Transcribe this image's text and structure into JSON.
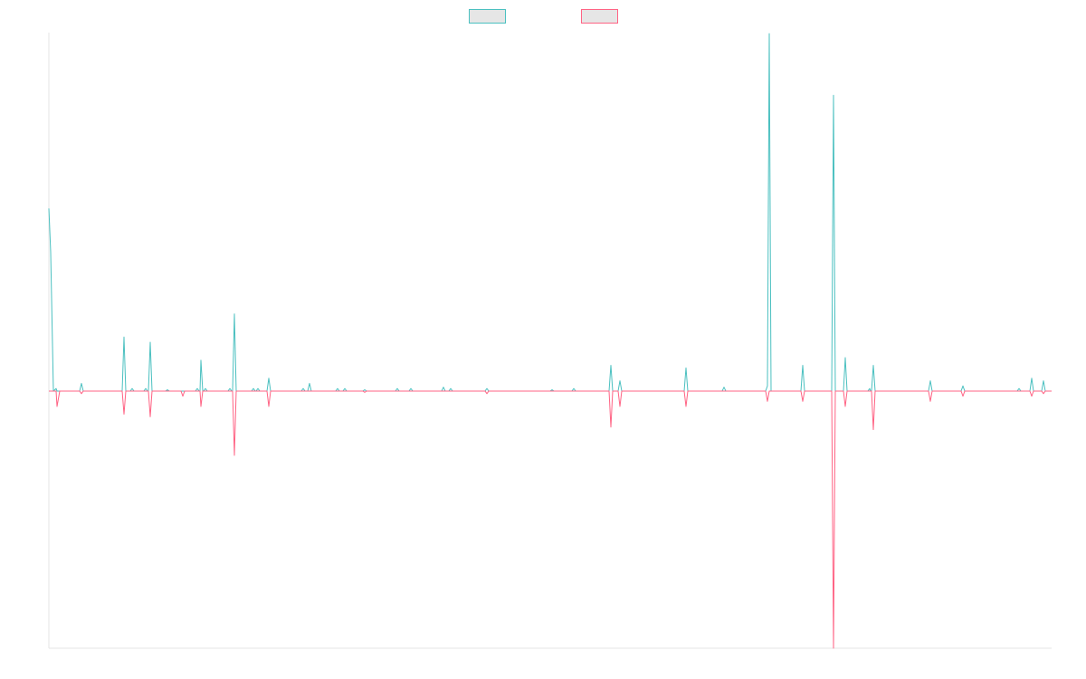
{
  "chart_data": {
    "type": "line",
    "x": [
      0,
      2,
      5,
      8,
      9,
      12,
      34,
      36,
      38,
      81,
      83,
      85,
      90,
      92,
      94,
      105,
      107,
      109,
      110,
      112,
      114,
      129,
      131,
      133,
      146,
      148,
      150,
      162,
      164,
      166,
      167,
      168,
      170,
      171,
      173,
      175,
      198,
      200,
      202,
      203,
      205,
      207,
      224,
      226,
      228,
      229,
      231,
      233,
      241,
      243,
      245,
      279,
      281,
      283,
      286,
      288,
      290,
      317,
      319,
      321,
      325,
      327,
      329,
      347,
      349,
      351,
      383,
      385,
      387,
      398,
      400,
      402,
      434,
      436,
      438,
      442,
      444,
      446,
      482,
      484,
      486,
      554,
      556,
      558,
      578,
      580,
      582,
      619,
      621,
      623,
      629,
      631,
      633,
      702,
      704,
      706,
      744,
      746,
      748,
      792,
      794,
      796,
      798,
      831,
      833,
      835,
      865,
      867,
      869,
      878,
      880,
      882,
      905,
      907,
      908,
      909,
      911,
      913,
      972,
      974,
      976,
      1008,
      1010,
      1012,
      1070,
      1072,
      1074,
      1084,
      1086,
      1088,
      1097,
      1099,
      1101,
      1108
    ],
    "series": [
      {
        "color": "#4bc0c0",
        "values": [
          71,
          54,
          0,
          1,
          0,
          0,
          0,
          3,
          0,
          0,
          21,
          0,
          0,
          1,
          0,
          0,
          1,
          0,
          0,
          19,
          0,
          0,
          0.5,
          0,
          0,
          0,
          0,
          0,
          1,
          0,
          0,
          12,
          0,
          0,
          1,
          0,
          0,
          1,
          0,
          0,
          30,
          0,
          0,
          1,
          0,
          0,
          1,
          0,
          0,
          5,
          0,
          0,
          1,
          0,
          0,
          3,
          0,
          0,
          1,
          0,
          0,
          1,
          0,
          0,
          0.5,
          0,
          0,
          1,
          0,
          0,
          1,
          0,
          0,
          1.5,
          0,
          0,
          1,
          0,
          0,
          1,
          0,
          0,
          0.5,
          0,
          0,
          1,
          0,
          0,
          10,
          0,
          0,
          4,
          0,
          0,
          9,
          0,
          0,
          1.5,
          0,
          0,
          2,
          139,
          0,
          0,
          10,
          0,
          0,
          115,
          0,
          0,
          13,
          0,
          0,
          1,
          0,
          0,
          10,
          0,
          0,
          4,
          0,
          0,
          2,
          0,
          0,
          1,
          0,
          0,
          5,
          0,
          0,
          4,
          0,
          0
        ]
      },
      {
        "color": "#ff6384",
        "values": [
          0,
          0,
          0,
          0,
          -6,
          0,
          0,
          -1,
          0,
          0,
          -9,
          0,
          0,
          0,
          0,
          0,
          0,
          0,
          0,
          -10,
          0,
          0,
          0,
          0,
          0,
          -2,
          0,
          0,
          0,
          0,
          0,
          -6,
          0,
          0,
          0,
          0,
          0,
          0,
          0,
          0,
          -25,
          0,
          0,
          0,
          0,
          0,
          0,
          0,
          0,
          -6,
          0,
          0,
          0,
          0,
          0,
          0,
          0,
          0,
          0,
          0,
          0,
          0,
          0,
          0,
          -0.5,
          0,
          0,
          0,
          0,
          0,
          0,
          0,
          0,
          0,
          0,
          0,
          0,
          0,
          0,
          -1,
          0,
          0,
          0,
          0,
          0,
          0,
          0,
          0,
          -14,
          0,
          0,
          -6,
          0,
          0,
          -6,
          0,
          0,
          0,
          0,
          0,
          -4,
          0,
          0,
          0,
          -4,
          0,
          0,
          -100,
          0,
          0,
          -6,
          0,
          0,
          0,
          0,
          0,
          -15,
          0,
          0,
          -4,
          0,
          0,
          -2,
          0,
          0,
          0,
          0,
          0,
          -2,
          0,
          0,
          -1,
          0,
          0
        ]
      }
    ],
    "xlim": [
      0,
      1108
    ],
    "ylim": [
      -100,
      139.4
    ],
    "legend": "top"
  }
}
